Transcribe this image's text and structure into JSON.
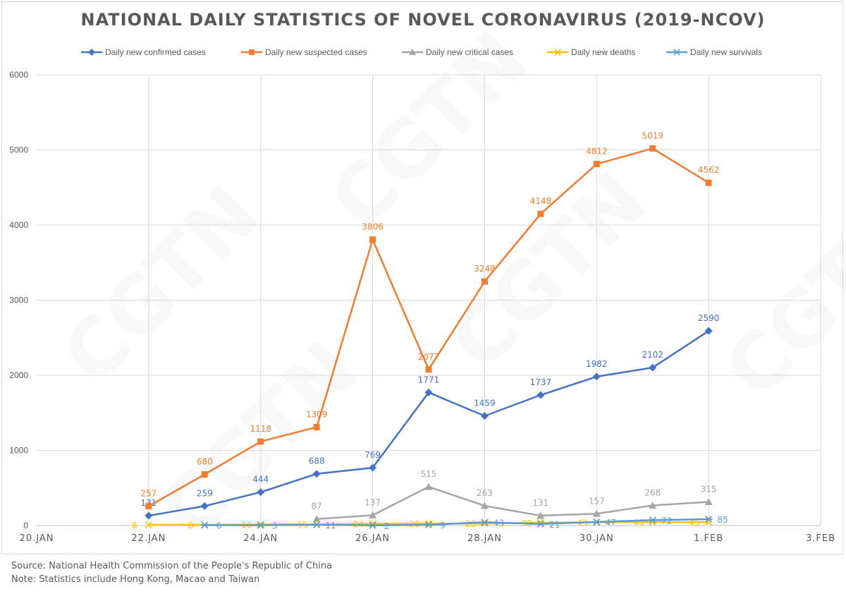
{
  "watermark": "CGTN",
  "footer": {
    "source": "Source: National Health Commission of the People's Republic of China",
    "note": "Note: Statistics include Hong Kong, Macao and Taiwan"
  },
  "chart_data": {
    "type": "line",
    "title": "NATIONAL DAILY STATISTICS OF NOVEL CORONAVIRUS (2019-NCOV)",
    "legend_position": "top",
    "grid": true,
    "ylim": [
      0,
      6000
    ],
    "yticks": [
      0,
      1000,
      2000,
      3000,
      4000,
      5000,
      6000
    ],
    "xlim": [
      20,
      34
    ],
    "xticks": [
      {
        "value": 20,
        "label": "20.JAN"
      },
      {
        "value": 22,
        "label": "22.JAN"
      },
      {
        "value": 24,
        "label": "24.JAN"
      },
      {
        "value": 26,
        "label": "26.JAN"
      },
      {
        "value": 28,
        "label": "28.JAN"
      },
      {
        "value": 30,
        "label": "30.JAN"
      },
      {
        "value": 32,
        "label": "1.FEB"
      },
      {
        "value": 34,
        "label": "3.FEB"
      }
    ],
    "series": [
      {
        "name": "Daily new confirmed cases",
        "color": "#4472c4",
        "marker": "diamond",
        "x": [
          22,
          23,
          24,
          25,
          26,
          27,
          28,
          29,
          30,
          31,
          32
        ],
        "values": [
          131,
          259,
          444,
          688,
          769,
          1771,
          1459,
          1737,
          1982,
          2102,
          2590
        ],
        "labels": [
          "131",
          "259",
          "444",
          "688",
          "769",
          "1771",
          "1459",
          "1737",
          "1982",
          "2102",
          "2590"
        ]
      },
      {
        "name": "Daily new suspected cases",
        "color": "#ed7d31",
        "marker": "square",
        "x": [
          22,
          23,
          24,
          25,
          26,
          27,
          28,
          29,
          30,
          31,
          32
        ],
        "values": [
          257,
          680,
          1118,
          1309,
          3806,
          2077,
          3248,
          4148,
          4812,
          5019,
          4562
        ],
        "labels": [
          "257",
          "680",
          "1118",
          "1309",
          "3806",
          "2077",
          "3248",
          "4148",
          "4812",
          "5019",
          "4562"
        ]
      },
      {
        "name": "Daily new critical cases",
        "color": "#a5a5a5",
        "marker": "triangle",
        "x": [
          25,
          26,
          27,
          28,
          29,
          30,
          31,
          32
        ],
        "values": [
          87,
          137,
          515,
          263,
          131,
          157,
          268,
          315
        ],
        "labels": [
          "87",
          "137",
          "515",
          "263",
          "131",
          "157",
          "268",
          "315"
        ]
      },
      {
        "name": "Daily new deaths",
        "color": "#ffc000",
        "marker": "x",
        "x": [
          22,
          23,
          24,
          25,
          26,
          27,
          28,
          29,
          30,
          31,
          32
        ],
        "values": [
          8,
          8,
          16,
          15,
          24,
          26,
          26,
          38,
          43,
          46,
          45
        ],
        "labels": [
          "8",
          "8",
          "16",
          "15",
          "24",
          "26",
          "26",
          "38",
          "43",
          "46",
          "45"
        ]
      },
      {
        "name": "Daily new survivals",
        "color": "#5b9bd5",
        "marker": "star",
        "x": [
          23,
          24,
          25,
          26,
          27,
          28,
          29,
          30,
          31,
          32
        ],
        "values": [
          6,
          3,
          11,
          2,
          9,
          43,
          21,
          47,
          72,
          85
        ],
        "labels": [
          "6",
          "3",
          "11",
          "2",
          "9",
          "43",
          "21",
          "47",
          "72",
          "85"
        ]
      }
    ]
  }
}
